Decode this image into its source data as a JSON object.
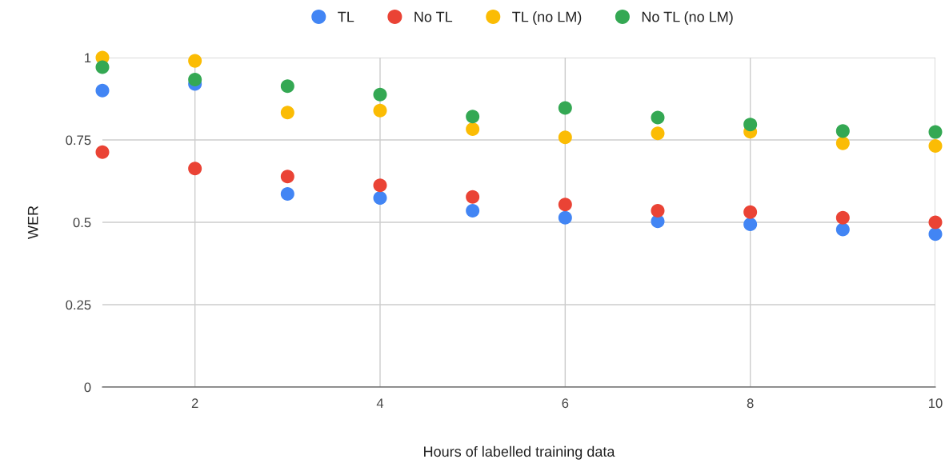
{
  "chart_data": {
    "type": "scatter",
    "xlabel": "Hours of labelled training data",
    "ylabel": "WER",
    "x": [
      1,
      2,
      3,
      4,
      5,
      6,
      7,
      8,
      9,
      10
    ],
    "series": [
      {
        "name": "TL",
        "color": "#4285f4",
        "values": [
          0.9,
          0.92,
          0.586,
          0.574,
          0.535,
          0.514,
          0.503,
          0.494,
          0.478,
          0.464
        ]
      },
      {
        "name": "No TL",
        "color": "#ea4335",
        "values": [
          0.713,
          0.663,
          0.639,
          0.612,
          0.577,
          0.554,
          0.535,
          0.531,
          0.514,
          0.5
        ]
      },
      {
        "name": "TL (no LM)",
        "color": "#fbbc04",
        "values": [
          1.0,
          0.99,
          0.833,
          0.839,
          0.783,
          0.758,
          0.77,
          0.775,
          0.74,
          0.732
        ]
      },
      {
        "name": "No TL (no LM)",
        "color": "#34a853",
        "values": [
          0.971,
          0.933,
          0.913,
          0.888,
          0.821,
          0.847,
          0.818,
          0.797,
          0.777,
          0.774
        ]
      }
    ],
    "xlim": [
      1,
      10
    ],
    "xticks": [
      2,
      4,
      6,
      8,
      10
    ],
    "ylim": [
      0,
      1
    ],
    "yticks": [
      0,
      0.25,
      0.5,
      0.75,
      1
    ],
    "grid": true,
    "legend": "top",
    "marker": "circle"
  }
}
